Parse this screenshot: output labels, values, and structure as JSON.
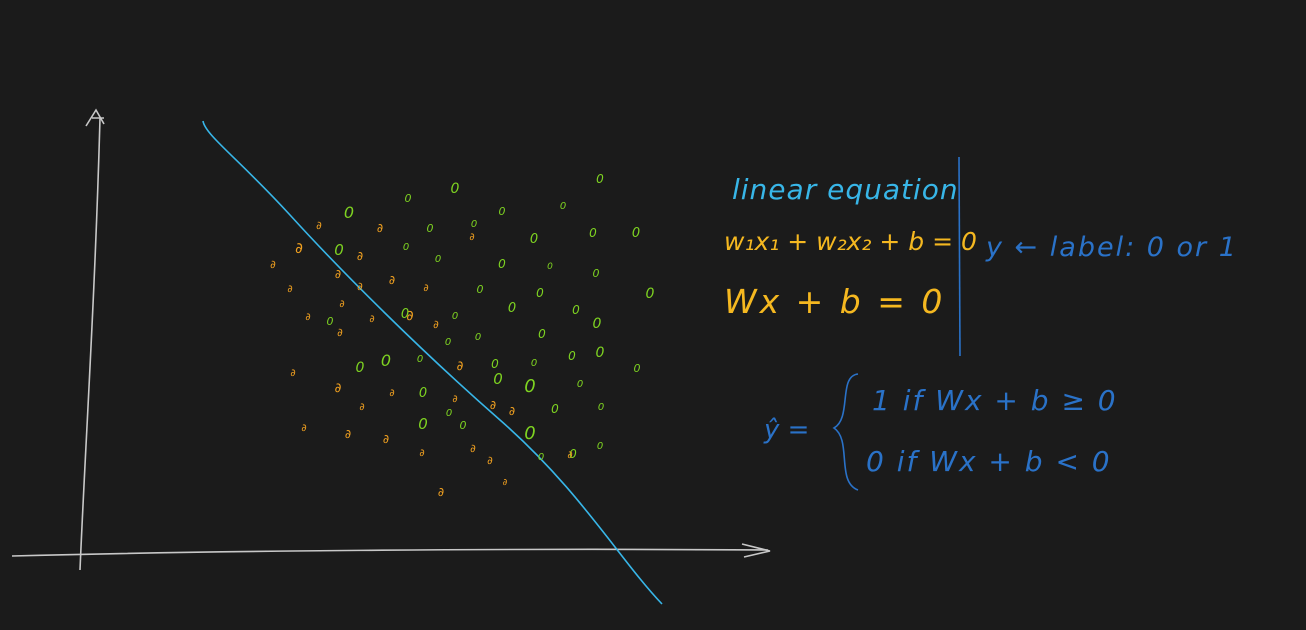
{
  "colors": {
    "background": "#1b1b1b",
    "axis": "#c8c8c8",
    "boundary": "#38b6e8",
    "class_zero": "#7ed321",
    "class_one": "#f0a020",
    "equation_title": "#38b6e8",
    "equation_body": "#f5b820",
    "notes": "#2a72c8"
  },
  "equations": {
    "title": "linear equation",
    "expanded": "w₁x₁ + w₂x₂ + b = 0",
    "compact": "Wx + b = 0"
  },
  "label_note": "y ← label: 0 or 1",
  "prediction": {
    "lhs": "ŷ =",
    "case_one": "1 if  Wx + b ≥ 0",
    "case_zero": "0 if  Wx + b < 0"
  },
  "points": {
    "class_zero_glyph": "0",
    "class_one_glyph": "∂"
  }
}
